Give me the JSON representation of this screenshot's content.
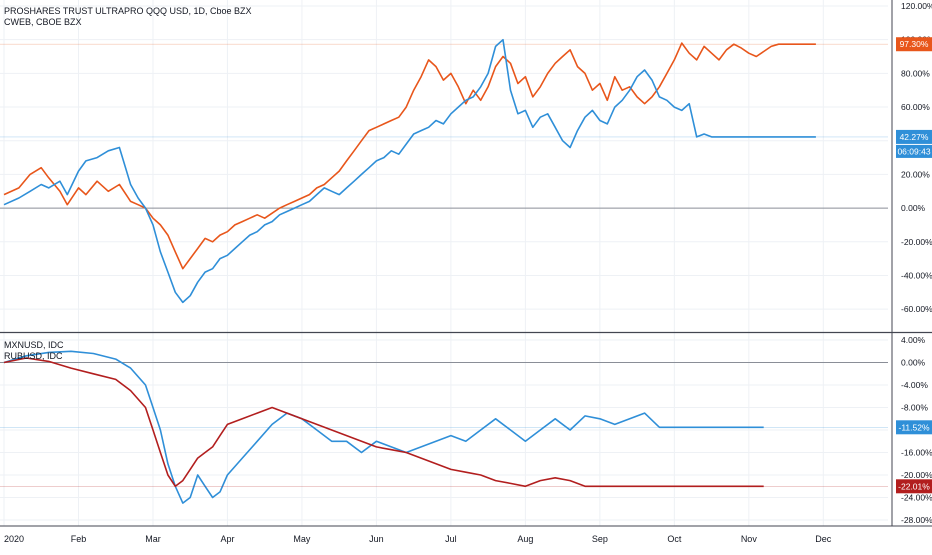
{
  "colors": {
    "bg": "#ffffff",
    "grid": "#eef1f5",
    "axis_text": "#131722",
    "zero_line": "#8a8e97",
    "separator": "#434651",
    "series_orange": "#e8561b",
    "series_blue": "#2f8fd8",
    "series_red": "#b21e1e",
    "series_blue_bottom": "#2f8fd8"
  },
  "legend_top": {
    "line1": "PROSHARES TRUST ULTRAPRO QQQ USD, 1D, Cboe BZX",
    "line2": "CWEB, CBOE BZX"
  },
  "legend_bottom": {
    "line1": "MXNUSD, IDC",
    "line2": "RUBUSD, IDC"
  },
  "chart_data": [
    {
      "type": "line",
      "pane": "top",
      "ylim": [
        -70,
        120
      ],
      "yticks": [
        "120.00%",
        "100.00%",
        "80.00%",
        "60.00%",
        "40.00%",
        "20.00%",
        "0.00%",
        "-20.00%",
        "-40.00%",
        "-60.00%"
      ],
      "ytick_values": [
        120,
        100,
        80,
        60,
        40,
        20,
        0,
        -20,
        -40,
        -60
      ],
      "series": [
        {
          "name": "PROSHARES TRUST ULTRAPRO QQQ USD",
          "color_key": "series_orange",
          "last_label": "97.30%",
          "x": [
            0,
            0.2,
            0.35,
            0.5,
            0.6,
            0.75,
            0.85,
            1.0,
            1.1,
            1.25,
            1.4,
            1.55,
            1.7,
            1.8,
            1.9,
            2.0,
            2.1,
            2.2,
            2.3,
            2.4,
            2.5,
            2.6,
            2.7,
            2.8,
            2.9,
            3.0,
            3.1,
            3.2,
            3.3,
            3.4,
            3.5,
            3.6,
            3.7,
            3.8,
            3.9,
            4.0,
            4.1,
            4.2,
            4.3,
            4.4,
            4.5,
            4.6,
            4.7,
            4.8,
            4.9,
            5.0,
            5.1,
            5.2,
            5.3,
            5.4,
            5.5,
            5.6,
            5.7,
            5.8,
            5.9,
            6.0,
            6.1,
            6.2,
            6.3,
            6.4,
            6.5,
            6.6,
            6.7,
            6.8,
            6.9,
            7.0,
            7.1,
            7.2,
            7.3,
            7.4,
            7.5,
            7.6,
            7.7,
            7.8,
            7.9,
            8.0,
            8.1,
            8.2,
            8.3,
            8.4,
            8.5,
            8.6,
            8.7,
            8.8,
            8.9,
            9.0,
            9.1,
            9.2,
            9.3,
            9.4,
            9.5,
            9.6,
            9.7,
            9.8,
            9.9,
            10.0,
            10.1,
            10.2,
            10.3,
            10.4,
            10.5,
            10.6,
            10.7,
            10.8,
            10.9
          ],
          "y": [
            8,
            12,
            20,
            24,
            18,
            10,
            2,
            12,
            8,
            16,
            10,
            14,
            4,
            2,
            0,
            -6,
            -10,
            -16,
            -26,
            -36,
            -30,
            -24,
            -18,
            -20,
            -16,
            -14,
            -10,
            -8,
            -6,
            -4,
            -6,
            -3,
            0,
            2,
            4,
            6,
            8,
            12,
            14,
            18,
            22,
            28,
            34,
            40,
            46,
            48,
            50,
            52,
            54,
            60,
            70,
            78,
            88,
            84,
            76,
            80,
            72,
            62,
            70,
            64,
            72,
            84,
            90,
            86,
            74,
            78,
            66,
            72,
            80,
            86,
            90,
            94,
            84,
            80,
            70,
            74,
            64,
            78,
            70,
            72,
            66,
            62,
            66,
            72,
            80,
            88,
            98,
            92,
            88,
            96,
            92,
            88,
            94,
            97.3,
            95,
            92,
            90,
            93,
            96,
            97.3,
            97.3,
            97.3,
            97.3,
            97.3,
            97.3
          ]
        },
        {
          "name": "CWEB",
          "color_key": "series_blue",
          "last_label": "42.27%",
          "time_label": "06:09:43",
          "x": [
            0,
            0.2,
            0.35,
            0.5,
            0.6,
            0.75,
            0.85,
            1.0,
            1.1,
            1.25,
            1.4,
            1.55,
            1.7,
            1.8,
            1.9,
            2.0,
            2.1,
            2.2,
            2.3,
            2.4,
            2.5,
            2.6,
            2.7,
            2.8,
            2.9,
            3.0,
            3.1,
            3.2,
            3.3,
            3.4,
            3.5,
            3.6,
            3.7,
            3.8,
            3.9,
            4.0,
            4.1,
            4.2,
            4.3,
            4.4,
            4.5,
            4.6,
            4.7,
            4.8,
            4.9,
            5.0,
            5.1,
            5.2,
            5.3,
            5.4,
            5.5,
            5.6,
            5.7,
            5.8,
            5.9,
            6.0,
            6.1,
            6.2,
            6.3,
            6.4,
            6.5,
            6.6,
            6.7,
            6.8,
            6.9,
            7.0,
            7.1,
            7.2,
            7.3,
            7.4,
            7.5,
            7.6,
            7.7,
            7.8,
            7.9,
            8.0,
            8.1,
            8.2,
            8.3,
            8.4,
            8.5,
            8.6,
            8.7,
            8.8,
            8.9,
            9.0,
            9.1,
            9.2,
            9.3,
            9.4,
            9.5,
            9.6,
            9.7,
            9.8,
            9.9,
            10.0,
            10.1,
            10.2,
            10.3,
            10.4,
            10.5,
            10.6,
            10.7,
            10.8,
            10.9
          ],
          "y": [
            2,
            6,
            10,
            14,
            12,
            16,
            8,
            22,
            28,
            30,
            34,
            36,
            14,
            6,
            0,
            -10,
            -26,
            -38,
            -50,
            -56,
            -52,
            -44,
            -38,
            -36,
            -30,
            -28,
            -24,
            -20,
            -16,
            -14,
            -10,
            -8,
            -4,
            -2,
            0,
            2,
            4,
            8,
            12,
            10,
            8,
            12,
            16,
            20,
            24,
            28,
            30,
            34,
            32,
            38,
            44,
            46,
            48,
            52,
            50,
            56,
            60,
            64,
            66,
            72,
            80,
            96,
            100,
            70,
            56,
            58,
            48,
            54,
            56,
            48,
            40,
            36,
            46,
            54,
            58,
            52,
            50,
            60,
            64,
            70,
            78,
            82,
            76,
            66,
            64,
            60,
            58,
            62,
            42.27,
            44,
            42.27,
            42.27,
            42.27,
            42.27,
            42.27,
            42.27,
            42.27,
            42.27,
            42.27,
            42.27,
            42.27,
            42.27,
            42.27,
            42.27,
            42.27
          ]
        }
      ]
    },
    {
      "type": "line",
      "pane": "bottom",
      "ylim": [
        -28,
        4
      ],
      "yticks": [
        "4.00%",
        "0.00%",
        "-4.00%",
        "-8.00%",
        "-12.00%",
        "-16.00%",
        "-20.00%",
        "-24.00%",
        "-28.00%"
      ],
      "ytick_values": [
        4,
        0,
        -4,
        -8,
        -12,
        -16,
        -20,
        -24,
        -28
      ],
      "series": [
        {
          "name": "MXNUSD",
          "color_key": "series_blue_bottom",
          "last_label": "-11.52%",
          "x": [
            0,
            0.3,
            0.6,
            0.9,
            1.2,
            1.5,
            1.7,
            1.9,
            2.0,
            2.1,
            2.2,
            2.3,
            2.4,
            2.5,
            2.6,
            2.7,
            2.8,
            2.9,
            3.0,
            3.2,
            3.4,
            3.6,
            3.8,
            4.0,
            4.2,
            4.4,
            4.6,
            4.8,
            5.0,
            5.2,
            5.4,
            5.6,
            5.8,
            6.0,
            6.2,
            6.4,
            6.6,
            6.8,
            7.0,
            7.2,
            7.4,
            7.6,
            7.8,
            8.0,
            8.2,
            8.4,
            8.6,
            8.8,
            9.0,
            9.2,
            9.4,
            9.6,
            9.8,
            10.0,
            10.2
          ],
          "y": [
            0,
            1.2,
            1.8,
            2.0,
            1.6,
            0.6,
            -1.0,
            -4.0,
            -8.0,
            -12.0,
            -18.0,
            -22.0,
            -25.0,
            -24.0,
            -20.0,
            -22.0,
            -24.0,
            -23.0,
            -20.0,
            -17.0,
            -14.0,
            -11.0,
            -9.0,
            -10.0,
            -12.0,
            -14.0,
            -14.0,
            -16.0,
            -14.0,
            -15.0,
            -16.0,
            -15.0,
            -14.0,
            -13.0,
            -14.0,
            -12.0,
            -10.0,
            -12.0,
            -14.0,
            -12.0,
            -10.0,
            -12.0,
            -9.5,
            -10.0,
            -11.0,
            -10.0,
            -9.0,
            -11.52,
            -11.52,
            -11.52,
            -11.52,
            -11.52,
            -11.52,
            -11.52,
            -11.52
          ]
        },
        {
          "name": "RUBUSD",
          "color_key": "series_red",
          "last_label": "-22.01%",
          "x": [
            0,
            0.3,
            0.6,
            0.9,
            1.2,
            1.5,
            1.7,
            1.9,
            2.0,
            2.1,
            2.2,
            2.3,
            2.4,
            2.5,
            2.6,
            2.7,
            2.8,
            2.9,
            3.0,
            3.2,
            3.4,
            3.6,
            3.8,
            4.0,
            4.2,
            4.4,
            4.6,
            4.8,
            5.0,
            5.2,
            5.4,
            5.6,
            5.8,
            6.0,
            6.2,
            6.4,
            6.6,
            6.8,
            7.0,
            7.2,
            7.4,
            7.6,
            7.8,
            8.0,
            8.2,
            8.4,
            8.6,
            8.8,
            9.0,
            9.2,
            9.4,
            9.6,
            9.8,
            10.0,
            10.2
          ],
          "y": [
            0,
            0.8,
            0.2,
            -1.0,
            -2.0,
            -3.0,
            -5.0,
            -8.0,
            -12.0,
            -16.0,
            -20.0,
            -22.0,
            -21.0,
            -19.0,
            -17.0,
            -16.0,
            -15.0,
            -13.0,
            -11.0,
            -10.0,
            -9.0,
            -8.0,
            -9.0,
            -10.0,
            -11.0,
            -12.0,
            -13.0,
            -14.0,
            -15.0,
            -15.5,
            -16.0,
            -17.0,
            -18.0,
            -19.0,
            -19.5,
            -20.0,
            -21.0,
            -21.5,
            -22.0,
            -21.0,
            -20.5,
            -21.0,
            -22.01,
            -22.01,
            -22.01,
            -22.01,
            -22.01,
            -22.01,
            -22.01,
            -22.01,
            -22.01,
            -22.01,
            -22.01,
            -22.01,
            -22.01
          ]
        }
      ]
    }
  ],
  "x_axis": {
    "labels": [
      "2020",
      "Feb",
      "Mar",
      "Apr",
      "May",
      "Jun",
      "Jul",
      "Aug",
      "Sep",
      "Oct",
      "Nov",
      "Dec"
    ],
    "label_positions_data": [
      0,
      1,
      2,
      3,
      4,
      5,
      6,
      7,
      8,
      9,
      10,
      11
    ],
    "xlim": [
      0,
      11.6
    ]
  }
}
